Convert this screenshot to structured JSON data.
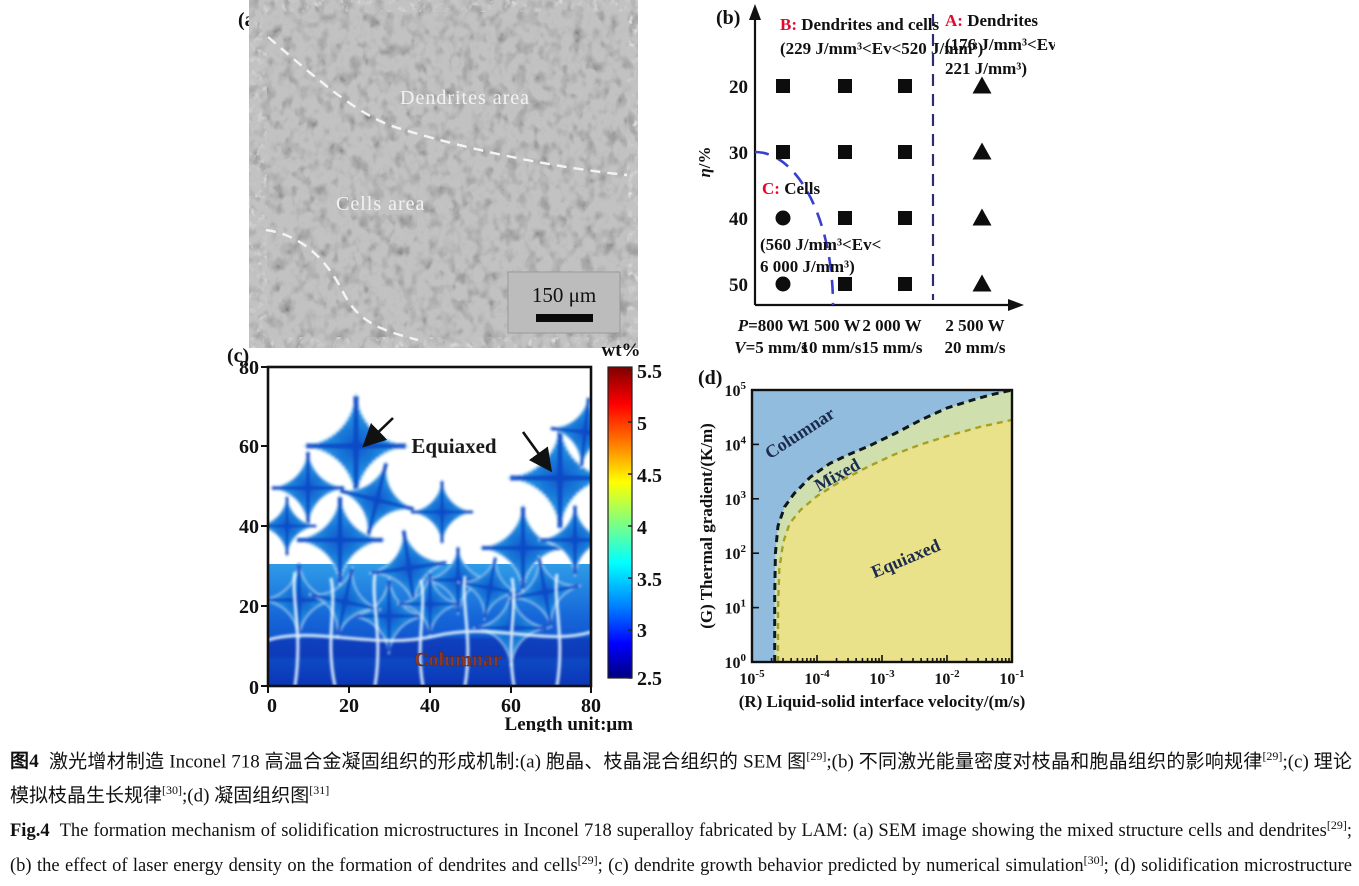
{
  "figure": {
    "name": "Fig.4 solidification microstructures of LAM Inconel 718"
  },
  "panel_a": {
    "label": "(a)",
    "annotations": {
      "dendrites": "Dendrites area",
      "cells": "Cells area"
    },
    "scale_bar": "150 μm"
  },
  "panel_b": {
    "label": "(b)",
    "y_axis": {
      "var": "η",
      "rest": "/%"
    },
    "y_ticks": [
      "20",
      "30",
      "40",
      "50"
    ],
    "x_labels": [
      {
        "var": "P",
        "val": "=800 W",
        "var2": "V",
        "val2": "=5 mm/s"
      },
      {
        "var": "",
        "val": "1 500 W",
        "var2": "",
        "val2": "10 mm/s"
      },
      {
        "var": "",
        "val": "2 000 W",
        "var2": "",
        "val2": "15 mm/s"
      },
      {
        "var": "",
        "val": "2 500 W",
        "var2": "",
        "val2": "20 mm/s"
      }
    ],
    "regions": {
      "b": {
        "tag": "B:",
        "name": " Dendrites and cells",
        "range1": "(229 J/mm³<Ev<520 J/mm³)"
      },
      "a": {
        "tag": "A:",
        "name": " Dendrites",
        "range1": "(176 J/mm³<Ev<",
        "range2": "221 J/mm³)"
      },
      "c": {
        "tag": "C:",
        "name": " Cells",
        "range1": "(560 J/mm³<Ev<",
        "range2": "6 000 J/mm³)"
      }
    }
  },
  "panel_c": {
    "label": "(c)",
    "x_ticks": [
      "0",
      "20",
      "40",
      "60",
      "80"
    ],
    "y_ticks": [
      "0",
      "20",
      "40",
      "60",
      "80"
    ],
    "xlabel": "Length unit:μm",
    "colorbar": {
      "title": "wt%",
      "ticks": [
        "5.5",
        "5",
        "4.5",
        "4",
        "3.5",
        "3",
        "2.5"
      ]
    },
    "labels": {
      "equiaxed": "Equiaxed",
      "columnar": "Columnar"
    }
  },
  "panel_d": {
    "label": "(d)",
    "ylabel": "(G) Thermal gradient/(K/m)",
    "xlabel": "(R) Liquid-solid interface velocity/(m/s)",
    "regions": {
      "columnar": "Columnar",
      "mixed": "Mixed",
      "equiaxed": "Equiaxed"
    },
    "tick_base": "10",
    "y_exponents": [
      "0",
      "1",
      "2",
      "3",
      "4",
      "5"
    ],
    "x_exponents": [
      "-5",
      "-4",
      "-3",
      "-2",
      "-1"
    ]
  },
  "caption": {
    "zh": {
      "label": "图4",
      "p1": "激光增材制造 Inconel 718 高温合金凝固组织的形成机制:(a) 胞晶、枝晶混合组织的 SEM 图",
      "r1": "[29]",
      "p2": ";(b) 不同激光能量密度对枝晶和胞晶组织的影响规律",
      "r2": "[29]",
      "p3": ";(c) 理论模拟枝晶生长规律",
      "r3": "[30]",
      "p4": ";(d) 凝固组织图",
      "r4": "[31]"
    },
    "en": {
      "label": "Fig.4",
      "p1": "The formation mechanism of solidification microstructures in Inconel 718 superalloy fabricated by LAM: (a) SEM image showing the mixed structure cells and dendrites",
      "r1": "[29]",
      "p2": "; (b) the effect of laser energy density on the formation of dendrites and cells",
      "r2": "[29]",
      "p3": "; (c) dendrite growth behavior predicted by numerical simulation",
      "r3": "[30]",
      "p4": "; (d) solidification microstructure map",
      "r4": "[31]"
    }
  },
  "colors": {
    "region_tag_red": "#e4082f",
    "blue_dashed_arc": "#3a3fd0",
    "separator_dashed": "#2c2c6e",
    "d_columnar_blue": "#92bcdd",
    "d_mixed_green": "#cfe0ae",
    "d_equiaxed_yellow": "#eae28a",
    "d_mixed_boundary": "#a8a020",
    "columnar_text_red": "#8b3a2a",
    "sem_gray": "#6a6a6a"
  },
  "chart_data": [
    {
      "panel": "b",
      "type": "scatter",
      "title": "Effect of laser energy density on dendrite and cell formation",
      "ylabel": "η/%",
      "y_values": [
        20,
        30,
        40,
        50
      ],
      "x_categories": [
        {
          "power_W": 800,
          "speed_mm_s": 5
        },
        {
          "power_W": 1500,
          "speed_mm_s": 10
        },
        {
          "power_W": 2000,
          "speed_mm_s": 15
        },
        {
          "power_W": 2500,
          "speed_mm_s": 20
        }
      ],
      "markers": [
        [
          "square",
          "square",
          "square",
          "triangle"
        ],
        [
          "square",
          "square",
          "square",
          "triangle"
        ],
        [
          "circle",
          "square",
          "square",
          "triangle"
        ],
        [
          "circle",
          "square",
          "square",
          "triangle"
        ]
      ],
      "marker_legend": {
        "square": "B: Dendrites and cells (229 J/mm³<Ev<520 J/mm³)",
        "triangle": "A: Dendrites (176 J/mm³<Ev<221 J/mm³)",
        "circle": "C: Cells (560 J/mm³<Ev<6 000 J/mm³)"
      }
    },
    {
      "panel": "c",
      "type": "heatmap",
      "title": "Dendrite growth predicted by numerical simulation",
      "x_range": [
        0,
        80
      ],
      "y_range": [
        0,
        80
      ],
      "x_ticks": [
        0,
        20,
        40,
        60,
        80
      ],
      "y_ticks": [
        0,
        20,
        40,
        60,
        80
      ],
      "xlabel": "Length unit:μm",
      "colorbar": {
        "label": "wt%",
        "min": 2.5,
        "max": 5.5,
        "ticks": [
          2.5,
          3,
          3.5,
          4,
          4.5,
          5,
          5.5
        ],
        "colormap": "jet"
      },
      "annotations": [
        "Equiaxed",
        "Columnar"
      ]
    },
    {
      "panel": "d",
      "type": "area",
      "title": "Solidification microstructure map",
      "xlabel": "(R) Liquid-solid interface velocity/(m/s)",
      "ylabel": "(G) Thermal gradient/(K/m)",
      "xlim_log10": [
        -5,
        -1
      ],
      "ylim_log10": [
        0,
        5
      ],
      "regions": [
        "Columnar",
        "Mixed",
        "Equiaxed"
      ],
      "boundary_columnar_mixed_log10": [
        [
          -4.65,
          0
        ],
        [
          -4.65,
          1.2
        ],
        [
          -4.64,
          2.0
        ],
        [
          -4.6,
          2.5
        ],
        [
          -4.5,
          2.85
        ],
        [
          -4.35,
          3.1
        ],
        [
          -4.1,
          3.4
        ],
        [
          -3.8,
          3.65
        ],
        [
          -3.5,
          3.82
        ],
        [
          -3.2,
          3.97
        ],
        [
          -2.8,
          4.2
        ],
        [
          -2.4,
          4.45
        ],
        [
          -2.0,
          4.67
        ],
        [
          -1.6,
          4.82
        ],
        [
          -1.3,
          4.92
        ],
        [
          -1.0,
          5.0
        ]
      ],
      "boundary_mixed_equiaxed_log10": [
        [
          -4.6,
          0
        ],
        [
          -4.6,
          1.0
        ],
        [
          -4.58,
          1.7
        ],
        [
          -4.52,
          2.2
        ],
        [
          -4.42,
          2.55
        ],
        [
          -4.25,
          2.8
        ],
        [
          -4.0,
          3.05
        ],
        [
          -3.6,
          3.35
        ],
        [
          -3.2,
          3.6
        ],
        [
          -2.8,
          3.82
        ],
        [
          -2.4,
          4.0
        ],
        [
          -2.0,
          4.15
        ],
        [
          -1.5,
          4.32
        ],
        [
          -1.0,
          4.45
        ]
      ]
    }
  ]
}
